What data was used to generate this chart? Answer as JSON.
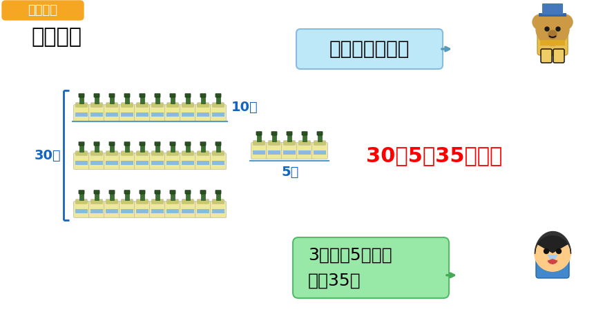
{
  "bg_color": "#ffffff",
  "header_bg": "#F5A623",
  "header_text": "探究新知",
  "header_text_color": "#ffffff",
  "title_text": "算一算。",
  "title_color": "#000000",
  "title_fontsize": 22,
  "label_30": "30瓶",
  "label_10": "10瓶",
  "label_5": "5瓶",
  "label_color_blue": "#1565C0",
  "equation": "30＋5＝35（瓶）",
  "equation_color": "#FF0000",
  "equation_fontsize": 22,
  "bubble1_text": "一共有多少瓶？",
  "bubble1_bg": "#BDE8F8",
  "bubble2_text": "3个十加5个一，\n等于35。",
  "bubble2_bg": "#98E8A8",
  "bubble_text_color": "#000000",
  "bubble1_fontsize": 20,
  "bubble2_fontsize": 18,
  "bracket_color": "#1565C0",
  "line_color": "#5599CC"
}
